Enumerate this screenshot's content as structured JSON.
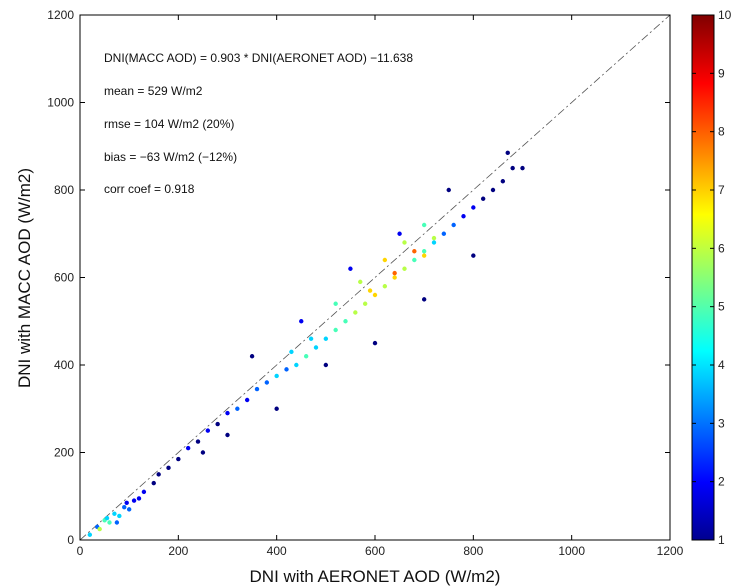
{
  "chart_data": {
    "type": "scatter",
    "title": "",
    "xlabel": "DNI with AERONET AOD (W/m2)",
    "ylabel": "DNI with MACC AOD (W/m2)",
    "xlim": [
      0,
      1200
    ],
    "ylim": [
      0,
      1200
    ],
    "xticks": [
      "0",
      "200",
      "400",
      "600",
      "800",
      "1000",
      "1200"
    ],
    "yticks": [
      "0",
      "200",
      "400",
      "600",
      "800",
      "1000",
      "1200"
    ],
    "reference_line": {
      "style": "dash-dot",
      "from": [
        0,
        0
      ],
      "to": [
        1200,
        1200
      ]
    },
    "fit": {
      "slope": 0.903,
      "intercept": -11.638
    },
    "annotations": [
      "DNI(MACC AOD) = 0.903 * DNI(AERONET AOD) −11.638",
      "mean = 529 W/m2",
      "rmse = 104 W/m2 (20%)",
      "bias = −63 W/m2 (−12%)",
      "corr coef = 0.918"
    ],
    "colorbar": {
      "range": [
        1,
        10
      ],
      "ticks": [
        "1",
        "2",
        "3",
        "4",
        "5",
        "6",
        "7",
        "8",
        "9",
        "10"
      ],
      "colormap": "jet"
    },
    "points": [
      [
        20,
        12,
        4
      ],
      [
        35,
        30,
        3
      ],
      [
        50,
        45,
        5
      ],
      [
        70,
        60,
        4
      ],
      [
        90,
        75,
        3
      ],
      [
        110,
        90,
        2
      ],
      [
        130,
        110,
        2
      ],
      [
        150,
        130,
        1
      ],
      [
        60,
        40,
        5
      ],
      [
        80,
        55,
        4
      ],
      [
        100,
        70,
        3
      ],
      [
        120,
        95,
        2
      ],
      [
        40,
        25,
        6
      ],
      [
        55,
        50,
        4
      ],
      [
        75,
        40,
        3
      ],
      [
        95,
        85,
        2
      ],
      [
        160,
        150,
        1
      ],
      [
        180,
        165,
        1
      ],
      [
        200,
        185,
        1
      ],
      [
        220,
        210,
        2
      ],
      [
        240,
        225,
        1
      ],
      [
        260,
        250,
        2
      ],
      [
        280,
        265,
        1
      ],
      [
        300,
        290,
        2
      ],
      [
        320,
        300,
        3
      ],
      [
        340,
        320,
        2
      ],
      [
        360,
        345,
        3
      ],
      [
        380,
        360,
        3
      ],
      [
        400,
        375,
        4
      ],
      [
        420,
        390,
        3
      ],
      [
        440,
        400,
        4
      ],
      [
        460,
        420,
        5
      ],
      [
        480,
        440,
        4
      ],
      [
        500,
        460,
        4
      ],
      [
        520,
        480,
        5
      ],
      [
        540,
        500,
        5
      ],
      [
        560,
        520,
        6
      ],
      [
        580,
        540,
        6
      ],
      [
        600,
        560,
        7
      ],
      [
        620,
        580,
        6
      ],
      [
        640,
        600,
        7
      ],
      [
        660,
        620,
        6
      ],
      [
        680,
        640,
        5
      ],
      [
        700,
        660,
        5
      ],
      [
        720,
        680,
        4
      ],
      [
        740,
        700,
        3
      ],
      [
        760,
        720,
        3
      ],
      [
        780,
        740,
        2
      ],
      [
        800,
        760,
        2
      ],
      [
        820,
        780,
        1
      ],
      [
        840,
        800,
        1
      ],
      [
        860,
        820,
        1
      ],
      [
        880,
        850,
        1
      ],
      [
        870,
        885,
        1
      ],
      [
        900,
        850,
        1
      ],
      [
        450,
        500,
        2
      ],
      [
        350,
        420,
        1
      ],
      [
        550,
        620,
        2
      ],
      [
        650,
        700,
        2
      ],
      [
        750,
        800,
        1
      ],
      [
        250,
        200,
        1
      ],
      [
        300,
        240,
        1
      ],
      [
        400,
        300,
        1
      ],
      [
        500,
        400,
        1
      ],
      [
        600,
        450,
        1
      ],
      [
        700,
        550,
        1
      ],
      [
        800,
        650,
        1
      ],
      [
        620,
        640,
        7
      ],
      [
        660,
        680,
        6
      ],
      [
        680,
        660,
        8
      ],
      [
        700,
        650,
        7
      ],
      [
        720,
        690,
        6
      ],
      [
        640,
        610,
        8
      ],
      [
        590,
        570,
        7
      ],
      [
        570,
        590,
        6
      ],
      [
        700,
        720,
        5
      ],
      [
        520,
        540,
        5
      ],
      [
        470,
        460,
        4
      ],
      [
        430,
        430,
        4
      ]
    ]
  }
}
